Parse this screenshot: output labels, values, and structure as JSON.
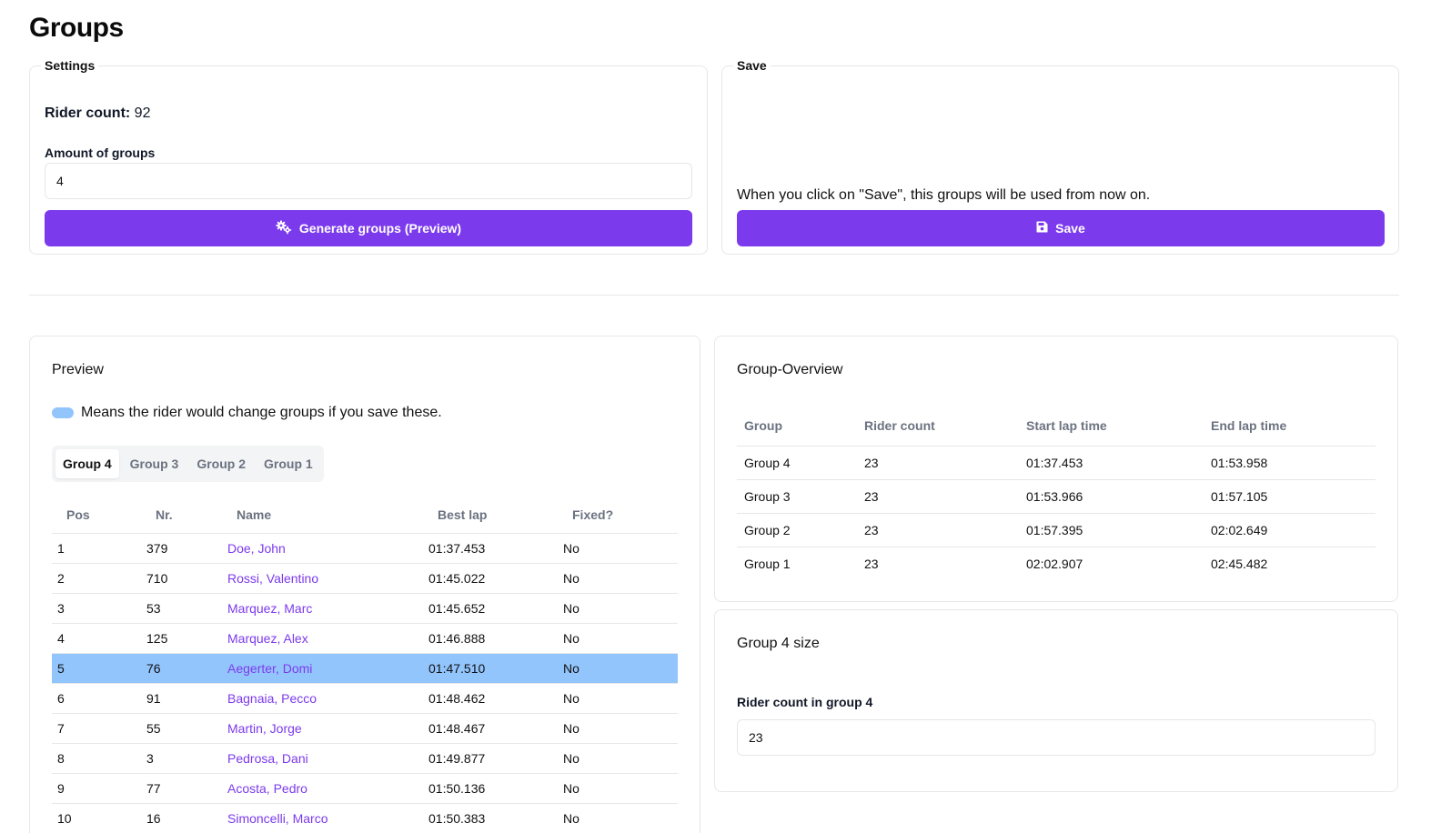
{
  "page": {
    "title": "Groups"
  },
  "settings": {
    "legend": "Settings",
    "rider_count_label": "Rider count:",
    "rider_count_value": "92",
    "amount_label": "Amount of groups",
    "amount_value": "4",
    "generate_button": "Generate groups (Preview)"
  },
  "save": {
    "legend": "Save",
    "note": "When you click on \"Save\", this groups will be used from now on.",
    "button": "Save"
  },
  "preview": {
    "title": "Preview",
    "legend_text": "Means the rider would change groups if you save these.",
    "tabs": [
      {
        "label": "Group 4",
        "active": true
      },
      {
        "label": "Group 3",
        "active": false
      },
      {
        "label": "Group 2",
        "active": false
      },
      {
        "label": "Group 1",
        "active": false
      }
    ],
    "columns": {
      "pos": "Pos",
      "nr": "Nr.",
      "name": "Name",
      "best_lap": "Best lap",
      "fixed": "Fixed?"
    },
    "rows": [
      {
        "pos": "1",
        "nr": "379",
        "name": "Doe, John",
        "best_lap": "01:37.453",
        "fixed": "No",
        "changed": false
      },
      {
        "pos": "2",
        "nr": "710",
        "name": "Rossi, Valentino",
        "best_lap": "01:45.022",
        "fixed": "No",
        "changed": false
      },
      {
        "pos": "3",
        "nr": "53",
        "name": "Marquez, Marc",
        "best_lap": "01:45.652",
        "fixed": "No",
        "changed": false
      },
      {
        "pos": "4",
        "nr": "125",
        "name": "Marquez, Alex",
        "best_lap": "01:46.888",
        "fixed": "No",
        "changed": false
      },
      {
        "pos": "5",
        "nr": "76",
        "name": "Aegerter, Domi",
        "best_lap": "01:47.510",
        "fixed": "No",
        "changed": true
      },
      {
        "pos": "6",
        "nr": "91",
        "name": "Bagnaia, Pecco",
        "best_lap": "01:48.462",
        "fixed": "No",
        "changed": false
      },
      {
        "pos": "7",
        "nr": "55",
        "name": "Martin, Jorge",
        "best_lap": "01:48.467",
        "fixed": "No",
        "changed": false
      },
      {
        "pos": "8",
        "nr": "3",
        "name": "Pedrosa, Dani",
        "best_lap": "01:49.877",
        "fixed": "No",
        "changed": false
      },
      {
        "pos": "9",
        "nr": "77",
        "name": "Acosta, Pedro",
        "best_lap": "01:50.136",
        "fixed": "No",
        "changed": false
      },
      {
        "pos": "10",
        "nr": "16",
        "name": "Simoncelli, Marco",
        "best_lap": "01:50.383",
        "fixed": "No",
        "changed": false
      }
    ]
  },
  "overview": {
    "title": "Group-Overview",
    "columns": {
      "group": "Group",
      "rider_count": "Rider count",
      "start": "Start lap time",
      "end": "End lap time"
    },
    "rows": [
      {
        "group": "Group 4",
        "rider_count": "23",
        "start": "01:37.453",
        "end": "01:53.958"
      },
      {
        "group": "Group 3",
        "rider_count": "23",
        "start": "01:53.966",
        "end": "01:57.105"
      },
      {
        "group": "Group 2",
        "rider_count": "23",
        "start": "01:57.395",
        "end": "02:02.649"
      },
      {
        "group": "Group 1",
        "rider_count": "23",
        "start": "02:02.907",
        "end": "02:45.482"
      }
    ]
  },
  "group_size": {
    "title": "Group 4 size",
    "label": "Rider count in group 4",
    "value": "23"
  },
  "colors": {
    "accent": "#7c3aed",
    "changed_row": "#93c5fd"
  },
  "icons": {
    "generate": "gears-icon",
    "save": "floppy-disk-icon"
  }
}
